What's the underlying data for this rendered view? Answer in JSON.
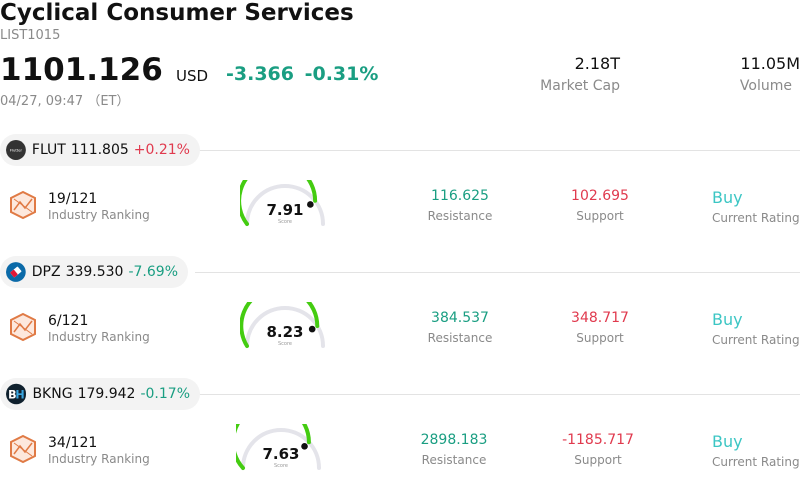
{
  "header": {
    "title": "Cyclical Consumer Services",
    "code": "LIST1015",
    "price": "1101.126",
    "currency": "USD",
    "change": "-3.366",
    "change_pct": "-0.31%",
    "timestamp": "04/27, 09:47 （ET）",
    "market_cap_value": "2.18T",
    "market_cap_label": "Market Cap",
    "volume_value": "11.05M",
    "volume_label": "Volume"
  },
  "colors": {
    "positive_red": "#e03a4e",
    "negative_green": "#1a9e82",
    "rating_teal": "#3cc6c4",
    "gauge_green": "#44cc11"
  },
  "stocks": [
    {
      "symbol": "FLUT",
      "price": "111.805",
      "change_pct": "+0.21%",
      "logo_icon": "flutter-logo-icon",
      "ranking": "19/121",
      "ranking_label": "Industry Ranking",
      "score": "7.91",
      "score_value": 7.91,
      "score_label": "Score",
      "resistance": "116.625",
      "resistance_label": "Resistance",
      "support": "102.695",
      "support_label": "Support",
      "rating": "Buy",
      "rating_label": "Current Rating"
    },
    {
      "symbol": "DPZ",
      "price": "339.530",
      "change_pct": "-7.69%",
      "logo_icon": "dominos-logo-icon",
      "ranking": "6/121",
      "ranking_label": "Industry Ranking",
      "score": "8.23",
      "score_value": 8.23,
      "score_label": "Score",
      "resistance": "384.537",
      "resistance_label": "Resistance",
      "support": "348.717",
      "support_label": "Support",
      "rating": "Buy",
      "rating_label": "Current Rating"
    },
    {
      "symbol": "BKNG",
      "price": "179.942",
      "change_pct": "-0.17%",
      "logo_icon": "booking-logo-icon",
      "ranking": "34/121",
      "ranking_label": "Industry Ranking",
      "score": "7.63",
      "score_value": 7.63,
      "score_label": "Score",
      "resistance": "2898.183",
      "resistance_label": "Resistance",
      "support": "-1185.717",
      "support_label": "Support",
      "rating": "Buy",
      "rating_label": "Current Rating"
    }
  ]
}
